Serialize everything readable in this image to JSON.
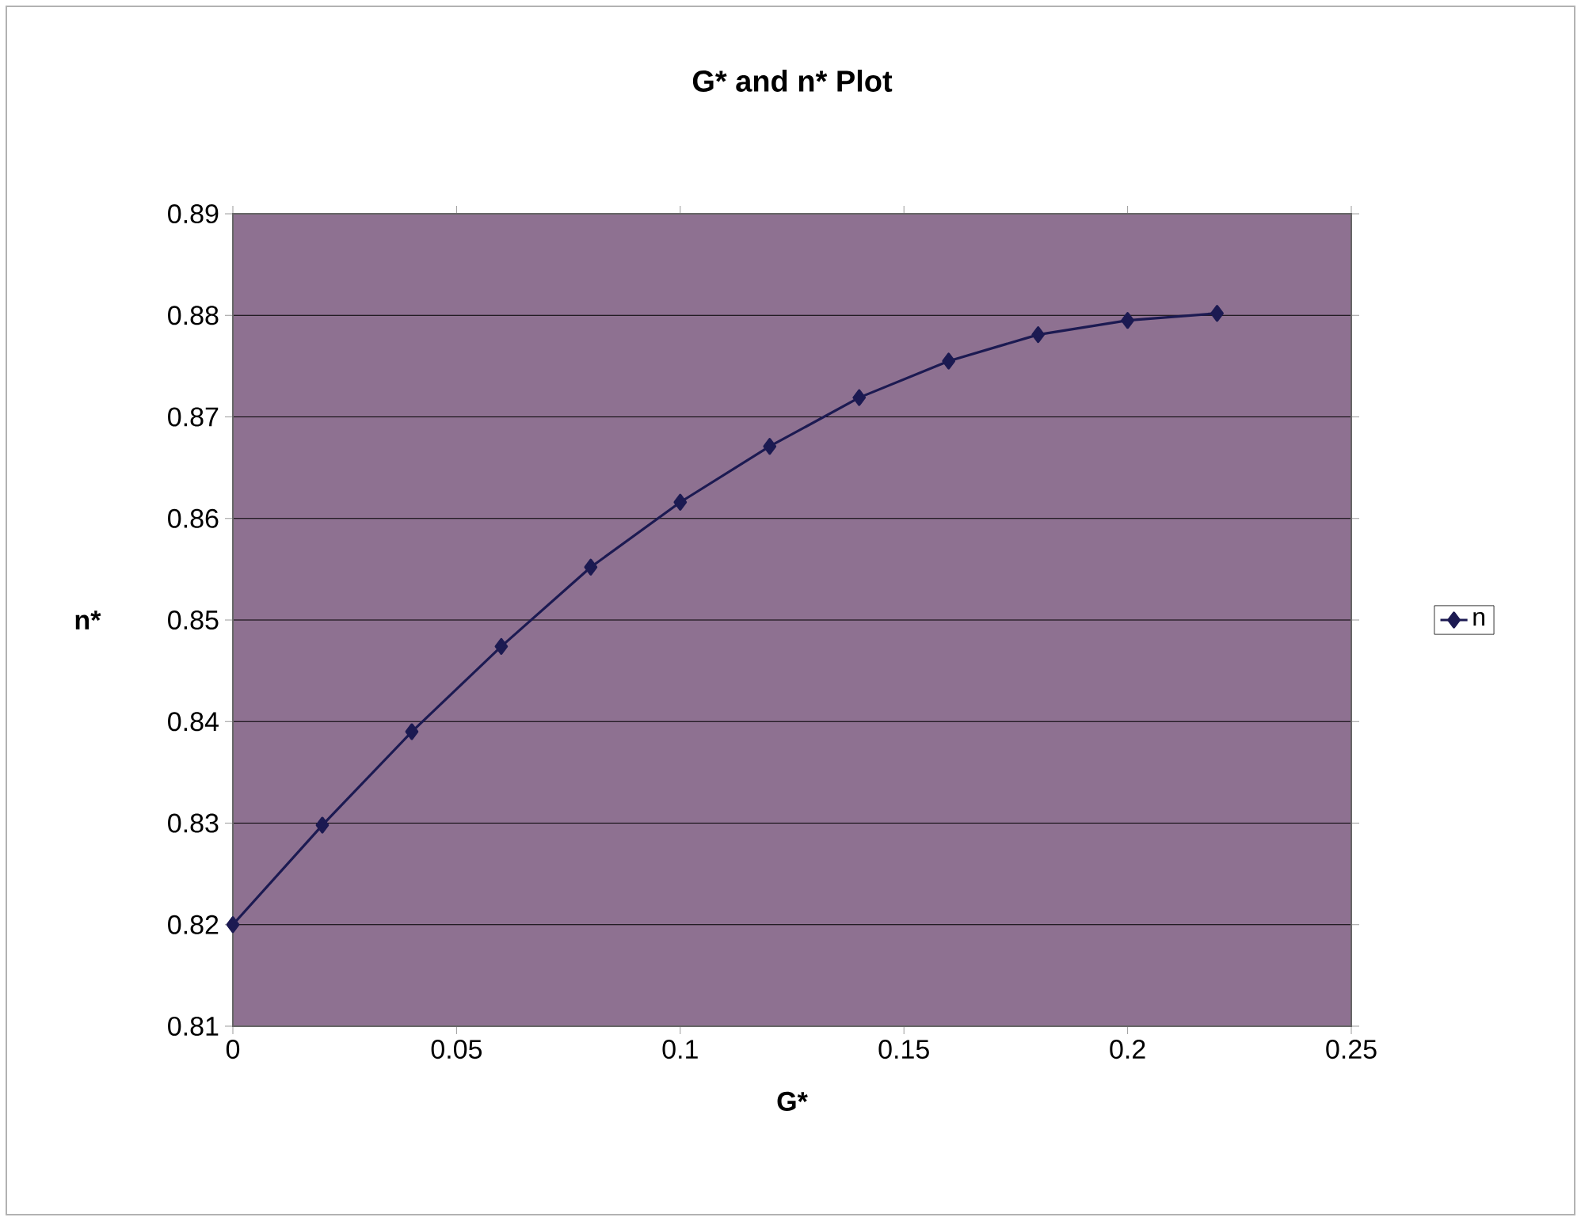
{
  "chart_data": {
    "type": "line",
    "title": "G* and n* Plot",
    "xlabel": "G*",
    "ylabel": "n*",
    "x": [
      0,
      0.02,
      0.04,
      0.06,
      0.08,
      0.1,
      0.12,
      0.14,
      0.16,
      0.18,
      0.2,
      0.22
    ],
    "series": [
      {
        "name": "n",
        "color": "#1c1a52",
        "values": [
          0.82,
          0.8298,
          0.839,
          0.8474,
          0.8552,
          0.8616,
          0.8671,
          0.8719,
          0.8755,
          0.8781,
          0.8795,
          0.8802
        ]
      }
    ],
    "xlim": [
      0,
      0.25
    ],
    "xticks": [
      0,
      0.05,
      0.1,
      0.15,
      0.2,
      0.25
    ],
    "ylim": [
      0.81,
      0.89
    ],
    "yticks": [
      0.81,
      0.82,
      0.83,
      0.84,
      0.85,
      0.86,
      0.87,
      0.88,
      0.89
    ],
    "grid": "y",
    "legend": "right",
    "marker": "diamond",
    "line_style": "solid"
  }
}
